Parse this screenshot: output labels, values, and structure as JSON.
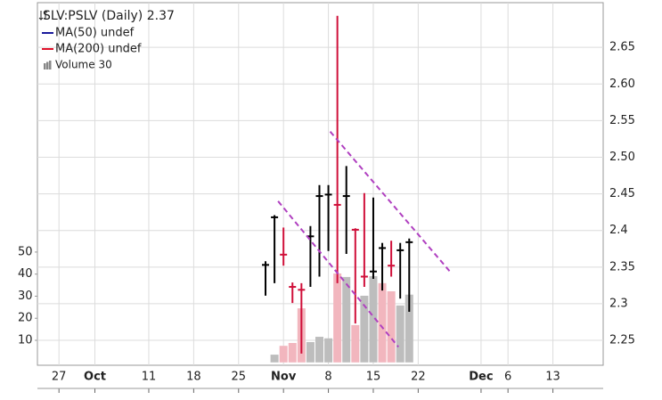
{
  "chart_data": {
    "type": "ohlc",
    "title": "SLV:PSLV (Daily) 2.37",
    "legend": [
      {
        "name": "MA(50) undef",
        "color": "#1a1a9c"
      },
      {
        "name": "MA(200) undef",
        "color": "#e0102a"
      }
    ],
    "x": [
      23,
      24,
      25,
      26,
      27,
      28,
      29,
      30,
      31,
      32,
      33,
      34,
      35,
      36,
      37,
      38,
      39
    ],
    "open": [
      2.353,
      2.418,
      2.367,
      2.323,
      2.319,
      2.392,
      2.447,
      2.449,
      2.435,
      2.447,
      2.401,
      2.337,
      2.344,
      2.376,
      2.352,
      2.373,
      2.384
    ],
    "high": [
      2.358,
      2.421,
      2.404,
      2.329,
      2.328,
      2.406,
      2.462,
      2.462,
      2.693,
      2.488,
      2.403,
      2.451,
      2.445,
      2.383,
      2.386,
      2.383,
      2.389
    ],
    "low": [
      2.311,
      2.328,
      2.352,
      2.301,
      2.232,
      2.323,
      2.337,
      2.372,
      2.328,
      2.368,
      2.273,
      2.323,
      2.334,
      2.318,
      2.337,
      2.307,
      2.289
    ],
    "close": [
      2.353,
      2.418,
      2.367,
      2.323,
      2.319,
      2.392,
      2.447,
      2.449,
      2.435,
      2.447,
      2.401,
      2.337,
      2.344,
      2.376,
      2.352,
      2.373,
      2.384
    ],
    "colors": [
      "#000000",
      "#000000",
      "#d0103a",
      "#d0103a",
      "#d0103a",
      "#000000",
      "#000000",
      "#000000",
      "#d0103a",
      "#000000",
      "#d0103a",
      "#d0103a",
      "#000000",
      "#000000",
      "#d0103a",
      "#000000",
      "#000000"
    ],
    "volume": {
      "name": "Volume 30",
      "color": "#888888",
      "values": [
        null,
        3.5,
        7.5,
        8.8,
        24.5,
        9.2,
        11.6,
        10.9,
        40.3,
        38.7,
        16.9,
        30.2,
        39.1,
        35.9,
        32.2,
        25.8,
        30.7
      ],
      "colors": [
        "#bdbdbd",
        "#bdbdbd",
        "#f2b6be",
        "#f2b6be",
        "#f2b6be",
        "#bdbdbd",
        "#bdbdbd",
        "#bdbdbd",
        "#f2b6be",
        "#bdbdbd",
        "#f2b6be",
        "#bdbdbd",
        "#bdbdbd",
        "#f2b6be",
        "#f2b6be",
        "#bdbdbd",
        "#bdbdbd"
      ]
    },
    "trendlines": [
      {
        "color": "#b040c0",
        "x": [
          24.4,
          37.8
        ],
        "y": [
          2.44,
          2.241
        ]
      },
      {
        "color": "#b040c0",
        "x": [
          30.2,
          43.6
        ],
        "y": [
          2.535,
          2.343
        ]
      }
    ],
    "xlim": [
      -2.4,
      60.6
    ],
    "xticks": [
      {
        "value": 0,
        "label": "27"
      },
      {
        "value": 4,
        "label": "Oct"
      },
      {
        "value": 10,
        "label": "11"
      },
      {
        "value": 15,
        "label": "18"
      },
      {
        "value": 20,
        "label": "25"
      },
      {
        "value": 25,
        "label": "Nov"
      },
      {
        "value": 30,
        "label": "8"
      },
      {
        "value": 35,
        "label": "15"
      },
      {
        "value": 40,
        "label": "22"
      },
      {
        "value": 47,
        "label": "Dec"
      },
      {
        "value": 50,
        "label": "6"
      },
      {
        "value": 55,
        "label": "13"
      }
    ],
    "ylim": [
      2.216,
      2.711
    ],
    "yticks": [
      2.25,
      2.3,
      2.35,
      2.4,
      2.45,
      {
        "value": 2.5,
        "label": "2.50"
      },
      2.55,
      {
        "value": 2.6,
        "label": "2.60"
      },
      2.65
    ],
    "y2lim": [
      -1.3,
      163
    ],
    "y2ticks": [
      10,
      20,
      30,
      40,
      50
    ],
    "grid": true
  }
}
